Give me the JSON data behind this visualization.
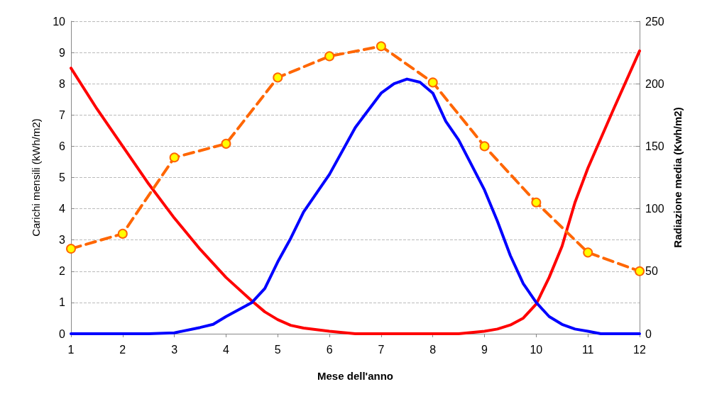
{
  "chart_data": {
    "type": "line",
    "xlabel": "Mese dell'anno",
    "ylabel": "Carichi mensili (kWh/m2)",
    "y2label": "Radiazione media (Kwh/m2)",
    "xlim": [
      1,
      12
    ],
    "xticks": [
      1,
      2,
      3,
      4,
      5,
      6,
      7,
      8,
      9,
      10,
      11,
      12
    ],
    "ylim": [
      0,
      10
    ],
    "yticks": [
      0,
      1,
      2,
      3,
      4,
      5,
      6,
      7,
      8,
      9,
      10
    ],
    "y2lim": [
      0,
      250
    ],
    "y2ticks": [
      0,
      50,
      100,
      150,
      200,
      250
    ],
    "grid": "y",
    "series": [
      {
        "color": "#ff0000",
        "marker": "none",
        "line_style": "solid",
        "x": [
          1,
          1.5,
          2,
          2.5,
          3,
          3.5,
          4,
          4.5,
          4.75,
          5,
          5.25,
          5.5,
          6,
          6.5,
          8.5,
          9,
          9.25,
          9.5,
          9.75,
          10,
          10.25,
          10.5,
          10.75,
          11,
          11.5,
          12
        ],
        "values": [
          8.5,
          7.2,
          6.0,
          4.8,
          3.7,
          2.7,
          1.8,
          1.05,
          0.7,
          0.45,
          0.27,
          0.18,
          0.08,
          0,
          0,
          0.08,
          0.15,
          0.28,
          0.5,
          0.95,
          1.8,
          2.8,
          4.2,
          5.3,
          7.2,
          9.05
        ]
      },
      {
        "color": "#0000ff",
        "marker": "none",
        "line_style": "solid",
        "x": [
          1,
          2,
          2.5,
          3,
          3.5,
          3.75,
          4,
          4.5,
          4.75,
          5,
          5.25,
          5.5,
          6,
          6.5,
          7,
          7.25,
          7.5,
          7.75,
          8,
          8.25,
          8.5,
          9,
          9.25,
          9.5,
          9.75,
          10,
          10.25,
          10.5,
          10.75,
          11,
          11.25,
          12
        ],
        "values": [
          0,
          0,
          0,
          0.03,
          0.2,
          0.3,
          0.55,
          1.0,
          1.45,
          2.3,
          3.05,
          3.9,
          5.1,
          6.6,
          7.7,
          8.0,
          8.15,
          8.05,
          7.7,
          6.8,
          6.2,
          4.6,
          3.6,
          2.5,
          1.6,
          1.0,
          0.55,
          0.3,
          0.15,
          0.08,
          0,
          0
        ]
      },
      {
        "color": "#ff6600",
        "axis": "y2",
        "marker": "circle",
        "line_style": "dashed",
        "x": [
          1,
          2,
          3,
          4,
          5,
          6,
          7,
          8,
          9,
          10,
          11,
          12
        ],
        "values": [
          68,
          80,
          141,
          152,
          205,
          222,
          230,
          201,
          150,
          105,
          65,
          50
        ]
      }
    ]
  }
}
